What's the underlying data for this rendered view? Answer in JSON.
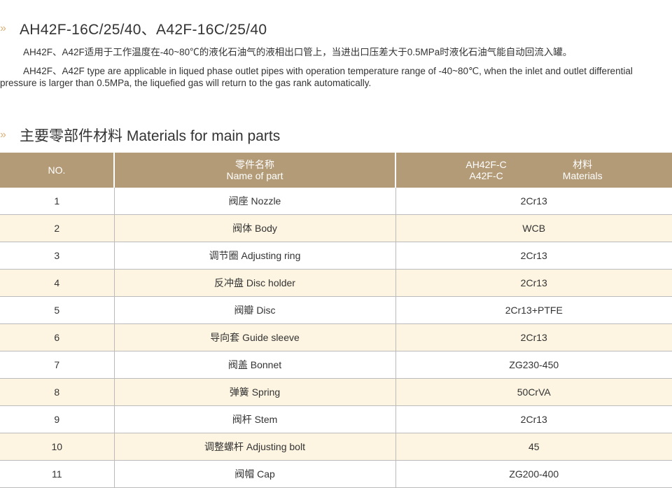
{
  "heading": "AH42F-16C/25/40、A42F-16C/25/40",
  "desc_cn": "AH42F、A42F适用于工作温度在-40~80℃的液化石油气的液相出口管上，当进出口压差大于0.5MPa时液化石油气能自动回流入罐。",
  "desc_en": "AH42F、A42F type are applicable in liqued phase outlet pipes with operation temperature range of -40~80℃, when the inlet and outlet differential pressure is larger than 0.5MPa, the liquefied gas will return to the gas rank automatically.",
  "materials_title": "主要零部件材料  Materials for main parts",
  "table": {
    "header": {
      "no": "NO.",
      "name_cn": "零件名称",
      "name_en": "Name of part",
      "model1": "AH42F-C",
      "model2": "A42F-C",
      "mat_cn": "材料",
      "mat_en": "Materials"
    },
    "rows": [
      {
        "no": "1",
        "name": "阀座  Nozzle",
        "material": "2Cr13"
      },
      {
        "no": "2",
        "name": "阀体  Body",
        "material": "WCB"
      },
      {
        "no": "3",
        "name": "调节圈  Adjusting ring",
        "material": "2Cr13"
      },
      {
        "no": "4",
        "name": "反冲盘  Disc holder",
        "material": "2Cr13"
      },
      {
        "no": "5",
        "name": "阀瓣  Disc",
        "material": "2Cr13+PTFE"
      },
      {
        "no": "6",
        "name": "导向套  Guide sleeve",
        "material": "2Cr13"
      },
      {
        "no": "7",
        "name": "阀盖  Bonnet",
        "material": "ZG230-450"
      },
      {
        "no": "8",
        "name": "弹簧  Spring",
        "material": "50CrVA"
      },
      {
        "no": "9",
        "name": "阀杆  Stem",
        "material": "2Cr13"
      },
      {
        "no": "10",
        "name": "调整螺杆  Adjusting bolt",
        "material": "45"
      },
      {
        "no": "11",
        "name": "阀帽  Cap",
        "material": "ZG200-400"
      }
    ]
  },
  "colors": {
    "header_bg": "#b39b78",
    "alt_row": "#fdf5e2",
    "chevron": "#d9b27a"
  }
}
